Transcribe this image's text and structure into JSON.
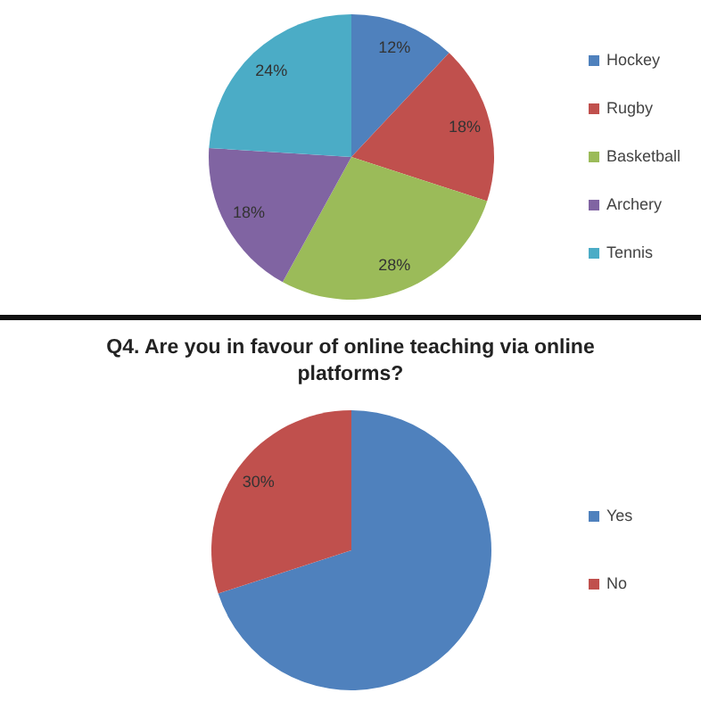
{
  "chart_data": [
    {
      "type": "pie",
      "categories": [
        "Hockey",
        "Rugby",
        "Basketball",
        "Archery",
        "Tennis"
      ],
      "values": [
        12,
        18,
        28,
        18,
        24
      ],
      "colors": [
        "#4f81bd",
        "#c0504d",
        "#9bbb59",
        "#8064a2",
        "#4bacc6"
      ],
      "value_labels": [
        "12%",
        "18%",
        "28%",
        "18%",
        "24%"
      ],
      "legend": "right"
    },
    {
      "type": "pie",
      "title": "Q4. Are you in favour of online teaching via online platforms?",
      "categories": [
        "Yes",
        "No"
      ],
      "values": [
        70,
        30
      ],
      "colors": [
        "#4f81bd",
        "#c0504d"
      ],
      "value_labels": [
        null,
        "30%"
      ],
      "legend": "right"
    }
  ]
}
